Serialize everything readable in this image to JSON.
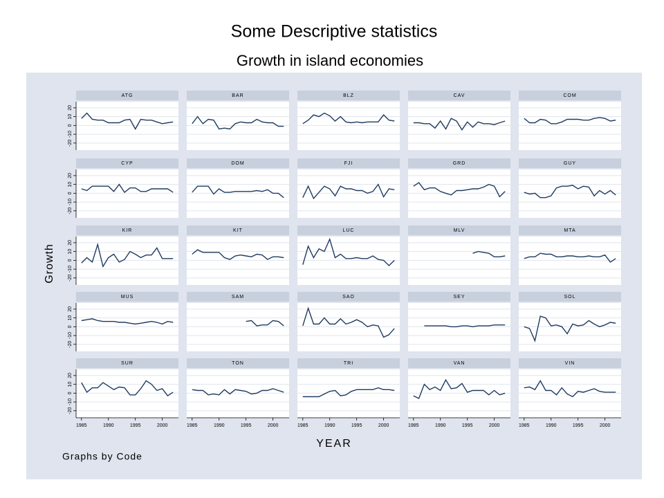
{
  "chart_data": {
    "type": "line",
    "title": "Some Descriptive statistics",
    "subtitle": "Growth in island economies",
    "ylabel": "Growth",
    "xlabel": "YEAR",
    "note": "Graphs by Code",
    "color": "#1f3a5f",
    "grid": true,
    "x": [
      1985,
      1986,
      1987,
      1988,
      1989,
      1990,
      1991,
      1992,
      1993,
      1994,
      1995,
      1996,
      1997,
      1998,
      1999,
      2000,
      2001,
      2002
    ],
    "xlim": [
      1984,
      2003
    ],
    "xticks": [
      1985,
      1990,
      1995,
      2000
    ],
    "ylim": [
      -28,
      27
    ],
    "yticks": [
      -20,
      -10,
      0,
      10,
      20
    ],
    "panels": [
      {
        "name": "ATG",
        "values": [
          8,
          14,
          7,
          6,
          6,
          3,
          3,
          3,
          6,
          7,
          -4,
          7,
          6,
          6,
          4,
          2,
          3,
          4
        ]
      },
      {
        "name": "BAR",
        "values": [
          2,
          10,
          2,
          7,
          6,
          -4,
          -3,
          -4,
          2,
          4,
          3,
          3,
          7,
          4,
          3,
          3,
          -1,
          -1
        ]
      },
      {
        "name": "BLZ",
        "values": [
          2,
          6,
          12,
          10,
          14,
          11,
          5,
          10,
          4,
          3,
          4,
          3,
          4,
          4,
          4,
          12,
          6,
          5
        ]
      },
      {
        "name": "CAV",
        "values": [
          3,
          3,
          2,
          2,
          -3,
          5,
          -4,
          8,
          5,
          -5,
          4,
          -2,
          4,
          2,
          2,
          1,
          3,
          5
        ]
      },
      {
        "name": "COM",
        "values": [
          8,
          3,
          3,
          7,
          6,
          2,
          2,
          4,
          7,
          7,
          7,
          6,
          6,
          8,
          9,
          8,
          5,
          6
        ]
      },
      {
        "name": "CYP",
        "values": [
          5,
          3,
          8,
          8,
          8,
          8,
          2,
          10,
          1,
          6,
          6,
          2,
          2,
          5,
          5,
          5,
          5,
          1
        ]
      },
      {
        "name": "DOM",
        "values": [
          1,
          8,
          8,
          8,
          -1,
          5,
          1,
          1,
          2,
          2,
          2,
          2,
          3,
          2,
          4,
          0,
          0,
          -5
        ]
      },
      {
        "name": "FJI",
        "values": [
          -5,
          8,
          -6,
          1,
          8,
          5,
          -3,
          8,
          5,
          5,
          3,
          3,
          0,
          2,
          10,
          -4,
          5,
          4
        ]
      },
      {
        "name": "GRD",
        "values": [
          8,
          12,
          4,
          6,
          6,
          2,
          0,
          -2,
          3,
          3,
          4,
          5,
          5,
          7,
          10,
          8,
          -4,
          2
        ]
      },
      {
        "name": "GUY",
        "values": [
          1,
          -1,
          0,
          -5,
          -5,
          -3,
          6,
          8,
          8,
          9,
          5,
          8,
          7,
          -3,
          3,
          -1,
          3,
          -2
        ]
      },
      {
        "name": "KIR",
        "values": [
          -3,
          3,
          -2,
          18,
          -7,
          3,
          7,
          -2,
          1,
          10,
          7,
          3,
          6,
          6,
          14,
          2,
          2,
          2
        ]
      },
      {
        "name": "KIT",
        "values": [
          7,
          12,
          9,
          9,
          9,
          9,
          3,
          1,
          5,
          6,
          5,
          4,
          7,
          6,
          1,
          4,
          4,
          3
        ]
      },
      {
        "name": "LUC",
        "values": [
          -5,
          16,
          3,
          13,
          10,
          24,
          3,
          7,
          2,
          2,
          3,
          2,
          2,
          5,
          1,
          0,
          -6,
          0
        ]
      },
      {
        "name": "MLV",
        "values": [
          null,
          null,
          null,
          null,
          null,
          null,
          null,
          null,
          null,
          null,
          null,
          8,
          10,
          9,
          8,
          4,
          4,
          5
        ]
      },
      {
        "name": "MTA",
        "values": [
          2,
          4,
          4,
          8,
          7,
          7,
          4,
          4,
          5,
          5,
          4,
          4,
          5,
          4,
          4,
          6,
          -2,
          2
        ]
      },
      {
        "name": "MUS",
        "values": [
          7,
          8,
          9,
          7,
          6,
          6,
          6,
          5,
          5,
          4,
          3,
          4,
          5,
          6,
          5,
          3,
          6,
          5
        ]
      },
      {
        "name": "SAM",
        "values": [
          null,
          null,
          null,
          null,
          null,
          null,
          null,
          null,
          null,
          null,
          6,
          7,
          1,
          2,
          2,
          7,
          6,
          1
        ]
      },
      {
        "name": "SAO",
        "values": [
          1,
          21,
          3,
          3,
          10,
          3,
          3,
          9,
          3,
          5,
          8,
          5,
          0,
          2,
          1,
          -12,
          -9,
          -2
        ]
      },
      {
        "name": "SEY",
        "values": [
          null,
          null,
          1,
          1,
          1,
          1,
          1,
          0,
          0,
          1,
          1,
          0,
          1,
          1,
          1,
          2,
          2,
          2
        ]
      },
      {
        "name": "SOL",
        "values": [
          0,
          -2,
          -16,
          12,
          10,
          1,
          2,
          0,
          -8,
          3,
          1,
          2,
          7,
          3,
          0,
          2,
          5,
          4
        ]
      },
      {
        "name": "SUR",
        "values": [
          12,
          1,
          6,
          6,
          12,
          8,
          4,
          7,
          6,
          -2,
          -2,
          5,
          14,
          10,
          3,
          5,
          -3,
          1
        ]
      },
      {
        "name": "TON",
        "values": [
          4,
          3,
          3,
          -2,
          -1,
          -2,
          4,
          -1,
          4,
          3,
          2,
          -1,
          0,
          3,
          3,
          5,
          3,
          1
        ]
      },
      {
        "name": "TRI",
        "values": [
          -4,
          -4,
          -4,
          -4,
          -1,
          2,
          3,
          -3,
          -2,
          2,
          4,
          4,
          4,
          4,
          6,
          4,
          4,
          3
        ]
      },
      {
        "name": "VAN",
        "values": [
          -3,
          -6,
          10,
          4,
          7,
          3,
          15,
          5,
          6,
          11,
          1,
          3,
          3,
          3,
          -2,
          3,
          -2,
          0
        ]
      },
      {
        "name": "VIN",
        "values": [
          6,
          7,
          4,
          14,
          3,
          3,
          -2,
          6,
          -1,
          -4,
          2,
          1,
          3,
          5,
          2,
          1,
          1,
          1
        ]
      }
    ]
  }
}
